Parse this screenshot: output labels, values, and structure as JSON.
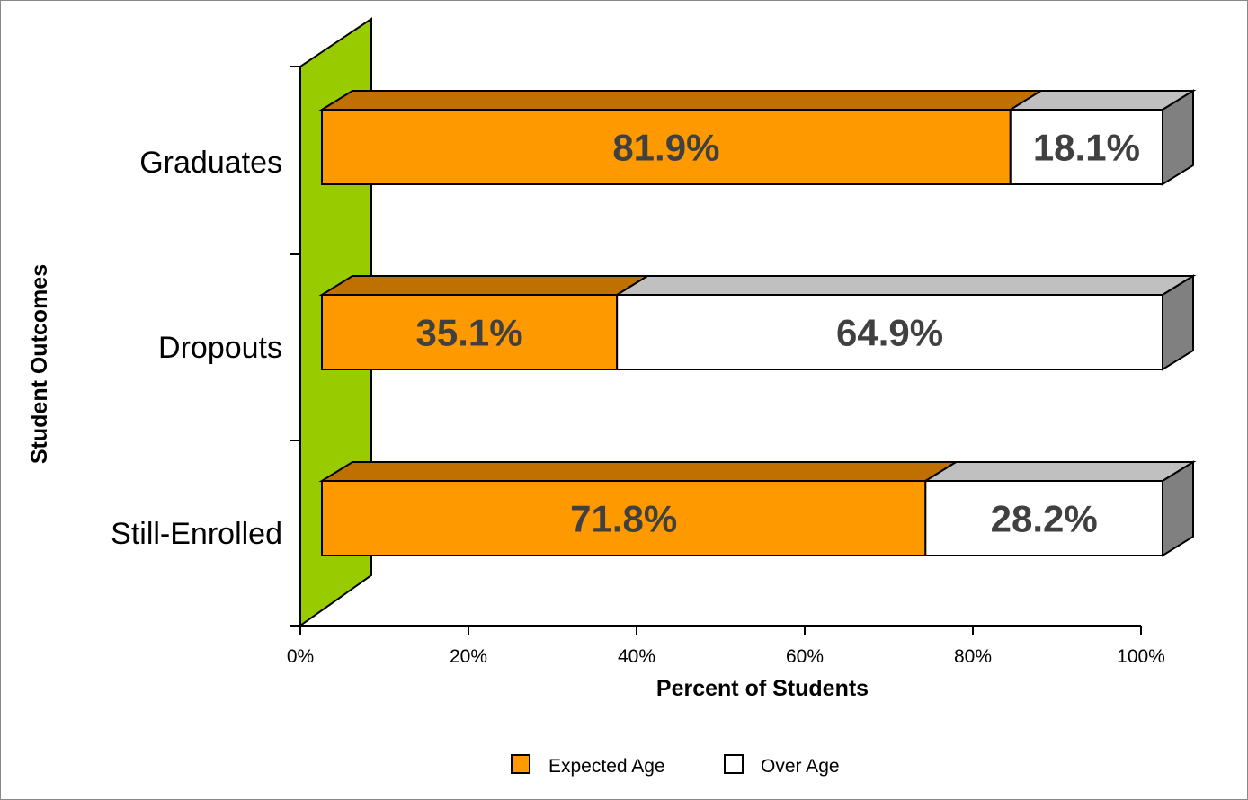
{
  "chart_data": {
    "type": "bar",
    "orientation": "horizontal",
    "stacked": true,
    "three_d": true,
    "categories": [
      "Graduates",
      "Dropouts",
      "Still-Enrolled"
    ],
    "series": [
      {
        "name": "Expected Age",
        "values": [
          81.9,
          35.1,
          71.8
        ],
        "labels": [
          "81.9%",
          "35.1%",
          "71.8%"
        ],
        "color": "#FF9900",
        "top_color": "#C07000"
      },
      {
        "name": "Over Age",
        "values": [
          18.1,
          64.9,
          28.2
        ],
        "labels": [
          "18.1%",
          "64.9%",
          "28.2%"
        ],
        "color": "#FFFFFF",
        "top_color": "#C0C0C0"
      }
    ],
    "xlabel": "Percent of Students",
    "ylabel": "Student Outcomes",
    "xlim": [
      0,
      100
    ],
    "x_ticks": [
      "0%",
      "20%",
      "40%",
      "60%",
      "80%",
      "100%"
    ],
    "wall_color": "#99CC00",
    "legend_position": "bottom",
    "grid": false
  }
}
